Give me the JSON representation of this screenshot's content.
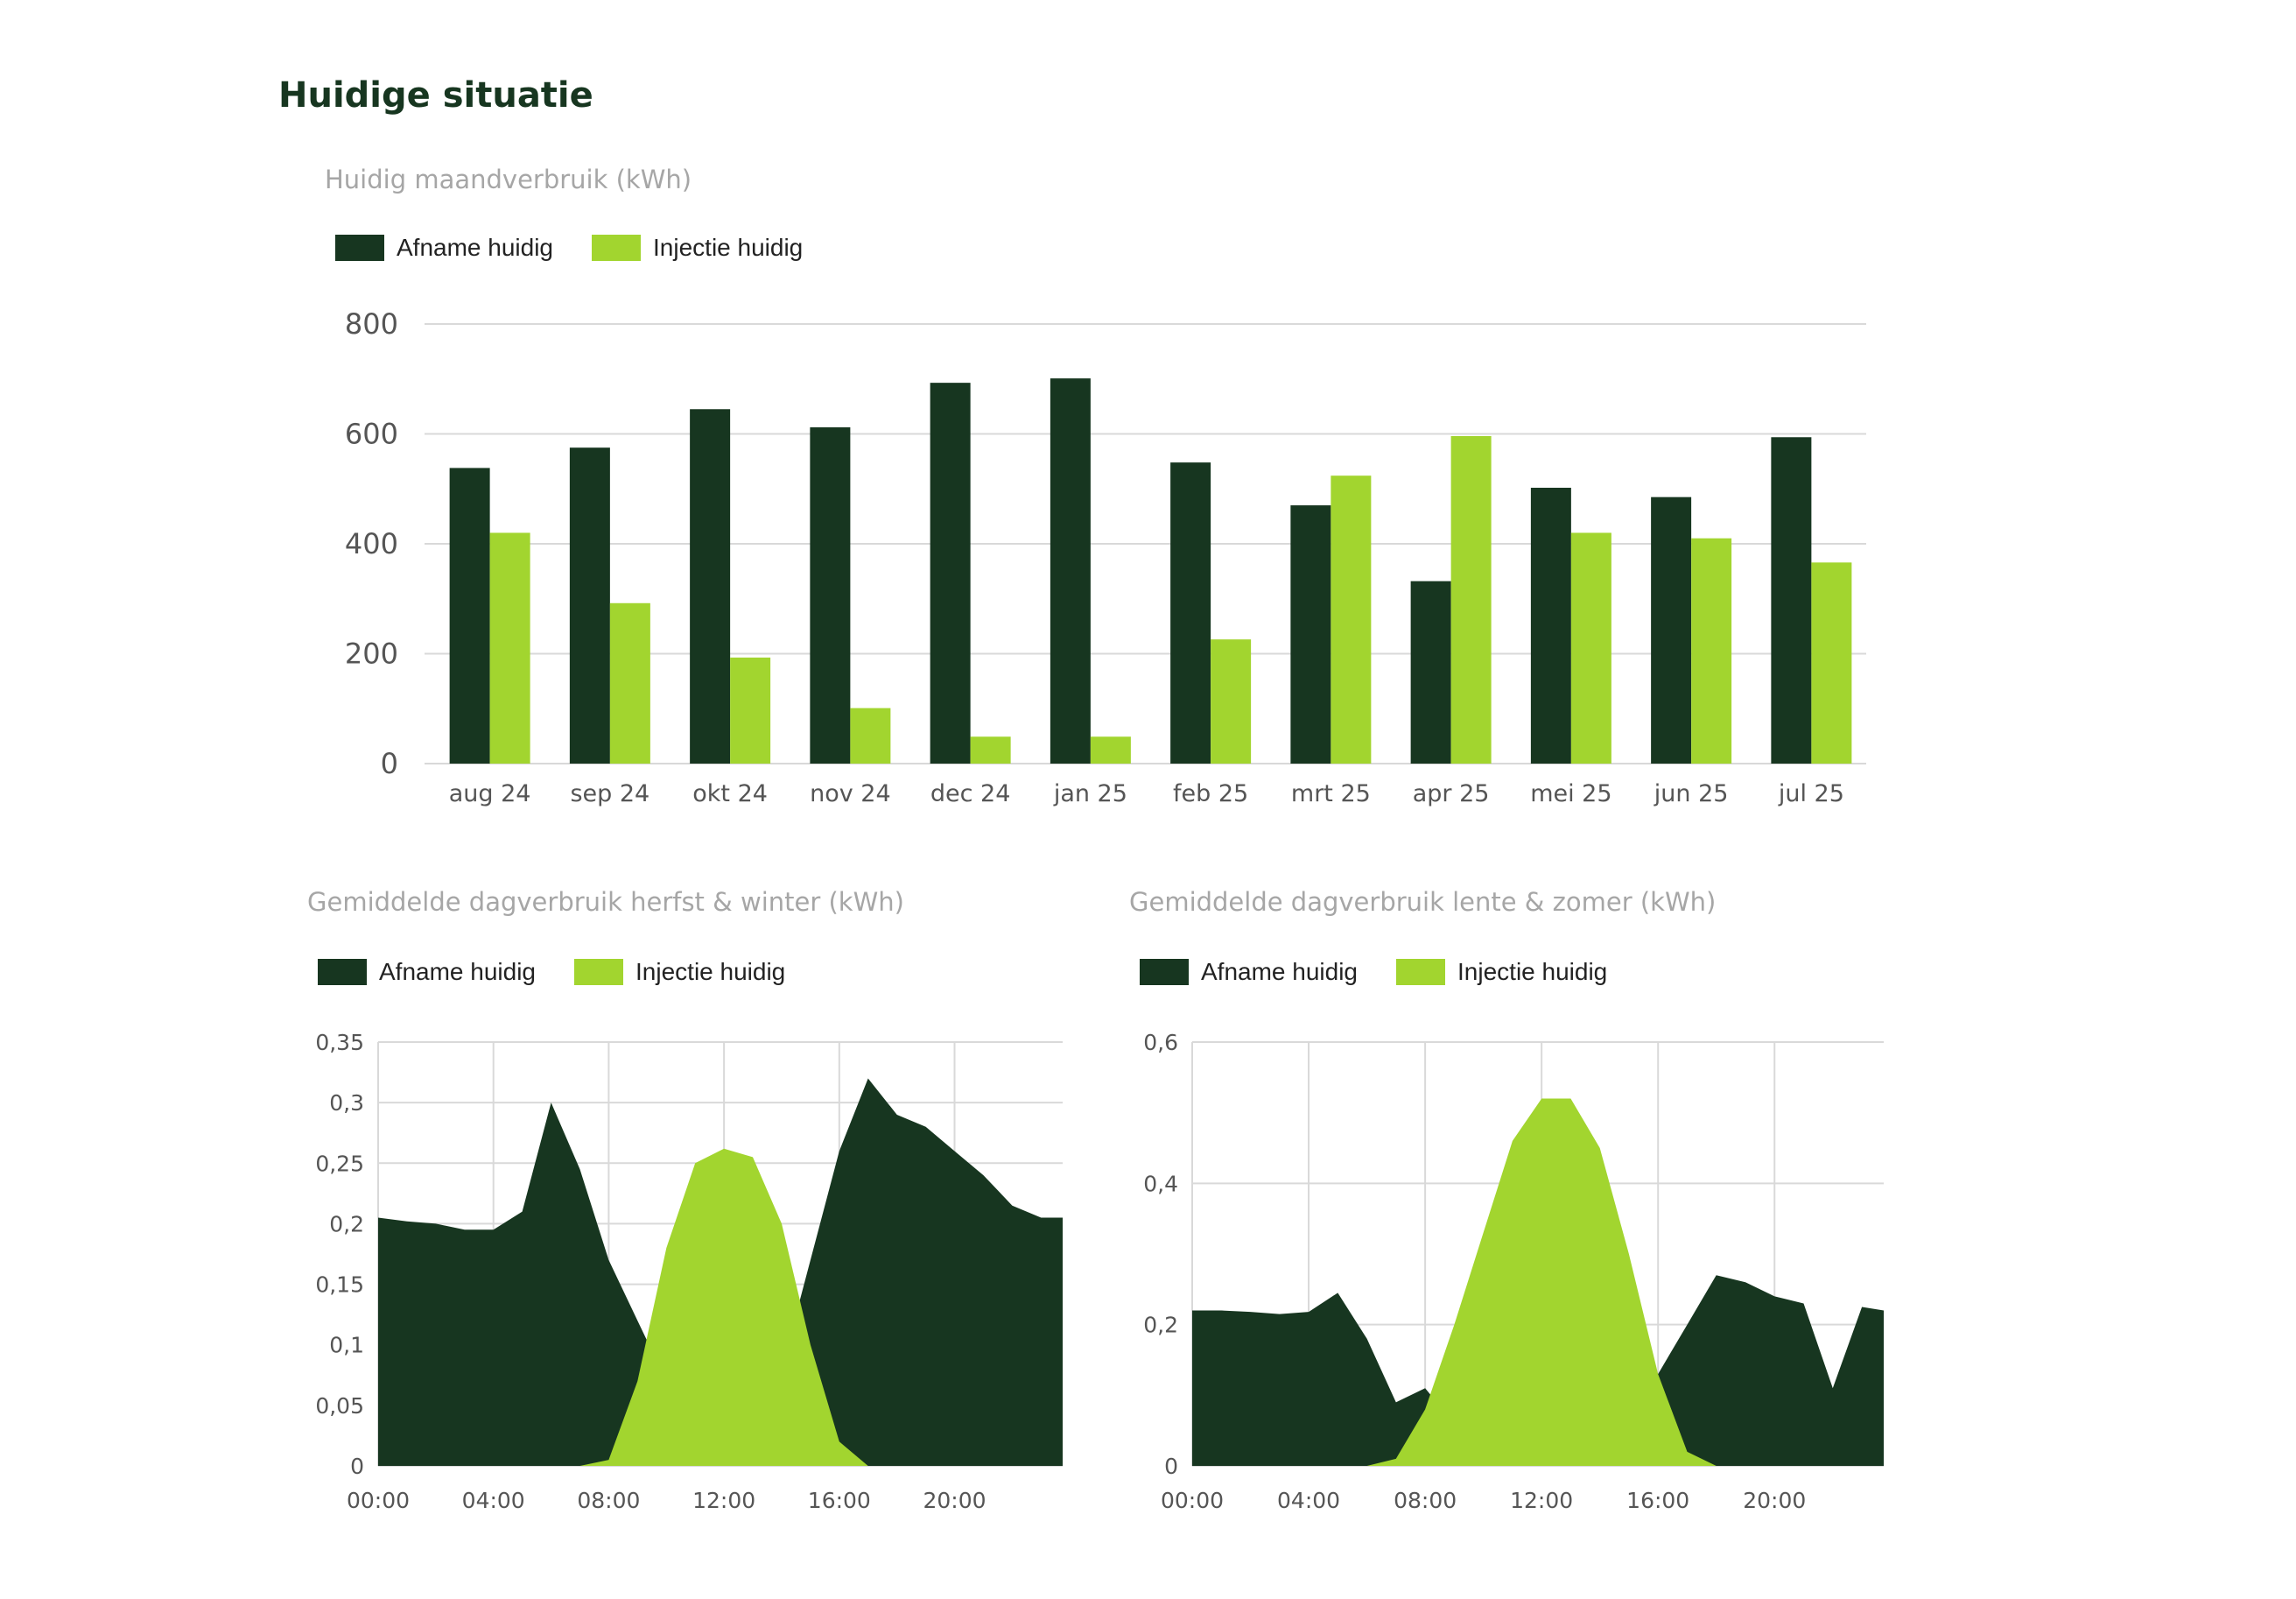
{
  "page": {
    "title": "Huidige situatie"
  },
  "colors": {
    "afname": "#173620",
    "injectie": "#a2d52f",
    "grid": "#d9d9d9",
    "axis_text": "#555555"
  },
  "legend": {
    "afname": "Afname huidig",
    "injectie": "Injectie huidig"
  },
  "chart_data": [
    {
      "type": "bar",
      "title": "Huidig maandverbruik (kWh)",
      "categories": [
        "aug 24",
        "sep 24",
        "okt 24",
        "nov 24",
        "dec 24",
        "jan 25",
        "feb 25",
        "mrt 25",
        "apr 25",
        "mei 25",
        "jun 25",
        "jul 25"
      ],
      "series": [
        {
          "name": "Afname huidig",
          "values": [
            538,
            575,
            645,
            612,
            693,
            701,
            548,
            470,
            332,
            502,
            485,
            594
          ]
        },
        {
          "name": "Injectie huidig",
          "values": [
            420,
            292,
            193,
            101,
            49,
            49,
            226,
            524,
            596,
            420,
            410,
            366
          ]
        }
      ],
      "ylim": [
        0,
        800
      ],
      "yticks": [
        "0",
        "200",
        "400",
        "600",
        "800"
      ],
      "grid": true,
      "legend_position": "top-left"
    },
    {
      "type": "area",
      "title": "Gemiddelde dagverbruik herfst & winter (kWh)",
      "x": [
        "00:00",
        "01:00",
        "02:00",
        "03:00",
        "04:00",
        "05:00",
        "06:00",
        "07:00",
        "08:00",
        "09:00",
        "10:00",
        "11:00",
        "12:00",
        "13:00",
        "14:00",
        "15:00",
        "16:00",
        "17:00",
        "18:00",
        "19:00",
        "20:00",
        "21:00",
        "22:00",
        "23:00",
        "23:45"
      ],
      "xticks": [
        "00:00",
        "04:00",
        "08:00",
        "12:00",
        "16:00",
        "20:00"
      ],
      "series": [
        {
          "name": "Afname huidig",
          "values": [
            0.205,
            0.202,
            0.2,
            0.195,
            0.195,
            0.21,
            0.3,
            0.245,
            0.17,
            0.12,
            0.07,
            0.03,
            0.02,
            0.03,
            0.08,
            0.17,
            0.26,
            0.32,
            0.29,
            0.28,
            0.26,
            0.24,
            0.215,
            0.205,
            0.205
          ]
        },
        {
          "name": "Injectie huidig",
          "values": [
            0,
            0,
            0,
            0,
            0,
            0,
            0,
            0,
            0.005,
            0.07,
            0.18,
            0.25,
            0.262,
            0.255,
            0.2,
            0.1,
            0.02,
            0,
            0,
            0,
            0,
            0,
            0,
            0,
            0
          ]
        }
      ],
      "ylim": [
        0,
        0.35
      ],
      "yticks": [
        "0",
        "0,05",
        "0,1",
        "0,15",
        "0,2",
        "0,25",
        "0,3",
        "0,35"
      ],
      "grid": true,
      "legend_position": "top-left"
    },
    {
      "type": "area",
      "title": "Gemiddelde dagverbruik lente & zomer (kWh)",
      "x": [
        "00:00",
        "01:00",
        "02:00",
        "03:00",
        "04:00",
        "05:00",
        "06:00",
        "07:00",
        "08:00",
        "09:00",
        "10:00",
        "11:00",
        "12:00",
        "13:00",
        "14:00",
        "15:00",
        "16:00",
        "17:00",
        "18:00",
        "19:00",
        "20:00",
        "21:00",
        "22:00",
        "23:00",
        "23:45"
      ],
      "xticks": [
        "00:00",
        "04:00",
        "08:00",
        "12:00",
        "16:00",
        "20:00"
      ],
      "series": [
        {
          "name": "Afname huidig",
          "values": [
            0.22,
            0.22,
            0.218,
            0.215,
            0.218,
            0.245,
            0.18,
            0.09,
            0.11,
            0.06,
            0.03,
            0.02,
            0.02,
            0.03,
            0.08,
            0.14,
            0.13,
            0.2,
            0.27,
            0.26,
            0.24,
            0.23,
            0.11,
            0.225,
            0.22
          ]
        },
        {
          "name": "Injectie huidig",
          "values": [
            0,
            0,
            0,
            0,
            0,
            0,
            0,
            0.01,
            0.08,
            0.2,
            0.33,
            0.46,
            0.52,
            0.52,
            0.45,
            0.3,
            0.13,
            0.02,
            0,
            0,
            0,
            0,
            0,
            0,
            0
          ]
        }
      ],
      "ylim": [
        0,
        0.6
      ],
      "yticks": [
        "0",
        "0,2",
        "0,4",
        "0,6"
      ],
      "grid": true,
      "legend_position": "top-left"
    }
  ]
}
